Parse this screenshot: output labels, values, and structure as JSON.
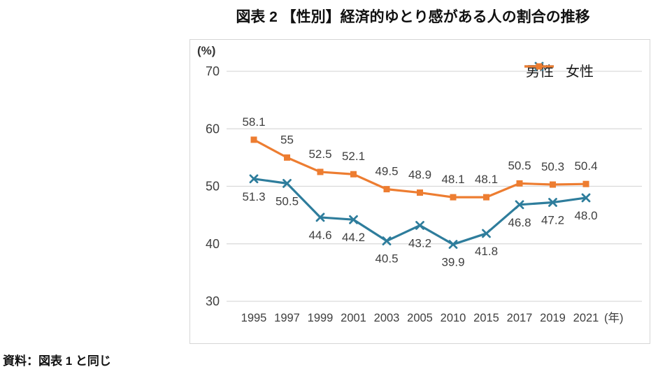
{
  "title": "図表 2 【性別】経済的ゆとり感がある人の割合の推移",
  "source_note": "資料：図表 1 と同じ",
  "colors": {
    "male": "#2e7d9c",
    "female": "#ed7d31",
    "gridline": "#d9d9d9",
    "text": "#3f3f3f",
    "border": "#d6d6d6"
  },
  "chart_data": {
    "type": "line",
    "title": "図表 2 【性別】経済的ゆとり感がある人の割合の推移",
    "x": [
      "1995",
      "1997",
      "1999",
      "2001",
      "2003",
      "2005",
      "2010",
      "2015",
      "2017",
      "2019",
      "2021"
    ],
    "xlabel": "(年)",
    "ylabel": "(%)",
    "ylim": [
      30,
      70
    ],
    "yticks": [
      30,
      40,
      50,
      60,
      70
    ],
    "grid": true,
    "legend_position": "top-right",
    "series": [
      {
        "key": "male",
        "name": "男性",
        "color": "#2e7d9c",
        "marker": "x",
        "label_position": "below",
        "values": [
          51.3,
          50.5,
          44.6,
          44.2,
          40.5,
          43.2,
          39.9,
          41.8,
          46.8,
          47.2,
          48.0
        ],
        "labels": [
          "51.3",
          "50.5",
          "44.6",
          "44.2",
          "40.5",
          "43.2",
          "39.9",
          "41.8",
          "46.8",
          "47.2",
          "48.0"
        ]
      },
      {
        "key": "female",
        "name": "女性",
        "color": "#ed7d31",
        "marker": "square",
        "label_position": "above",
        "values": [
          58.1,
          55,
          52.5,
          52.1,
          49.5,
          48.9,
          48.1,
          48.1,
          50.5,
          50.3,
          50.4
        ],
        "labels": [
          "58.1",
          "55",
          "52.5",
          "52.1",
          "49.5",
          "48.9",
          "48.1",
          "48.1",
          "50.5",
          "50.3",
          "50.4"
        ]
      }
    ]
  }
}
